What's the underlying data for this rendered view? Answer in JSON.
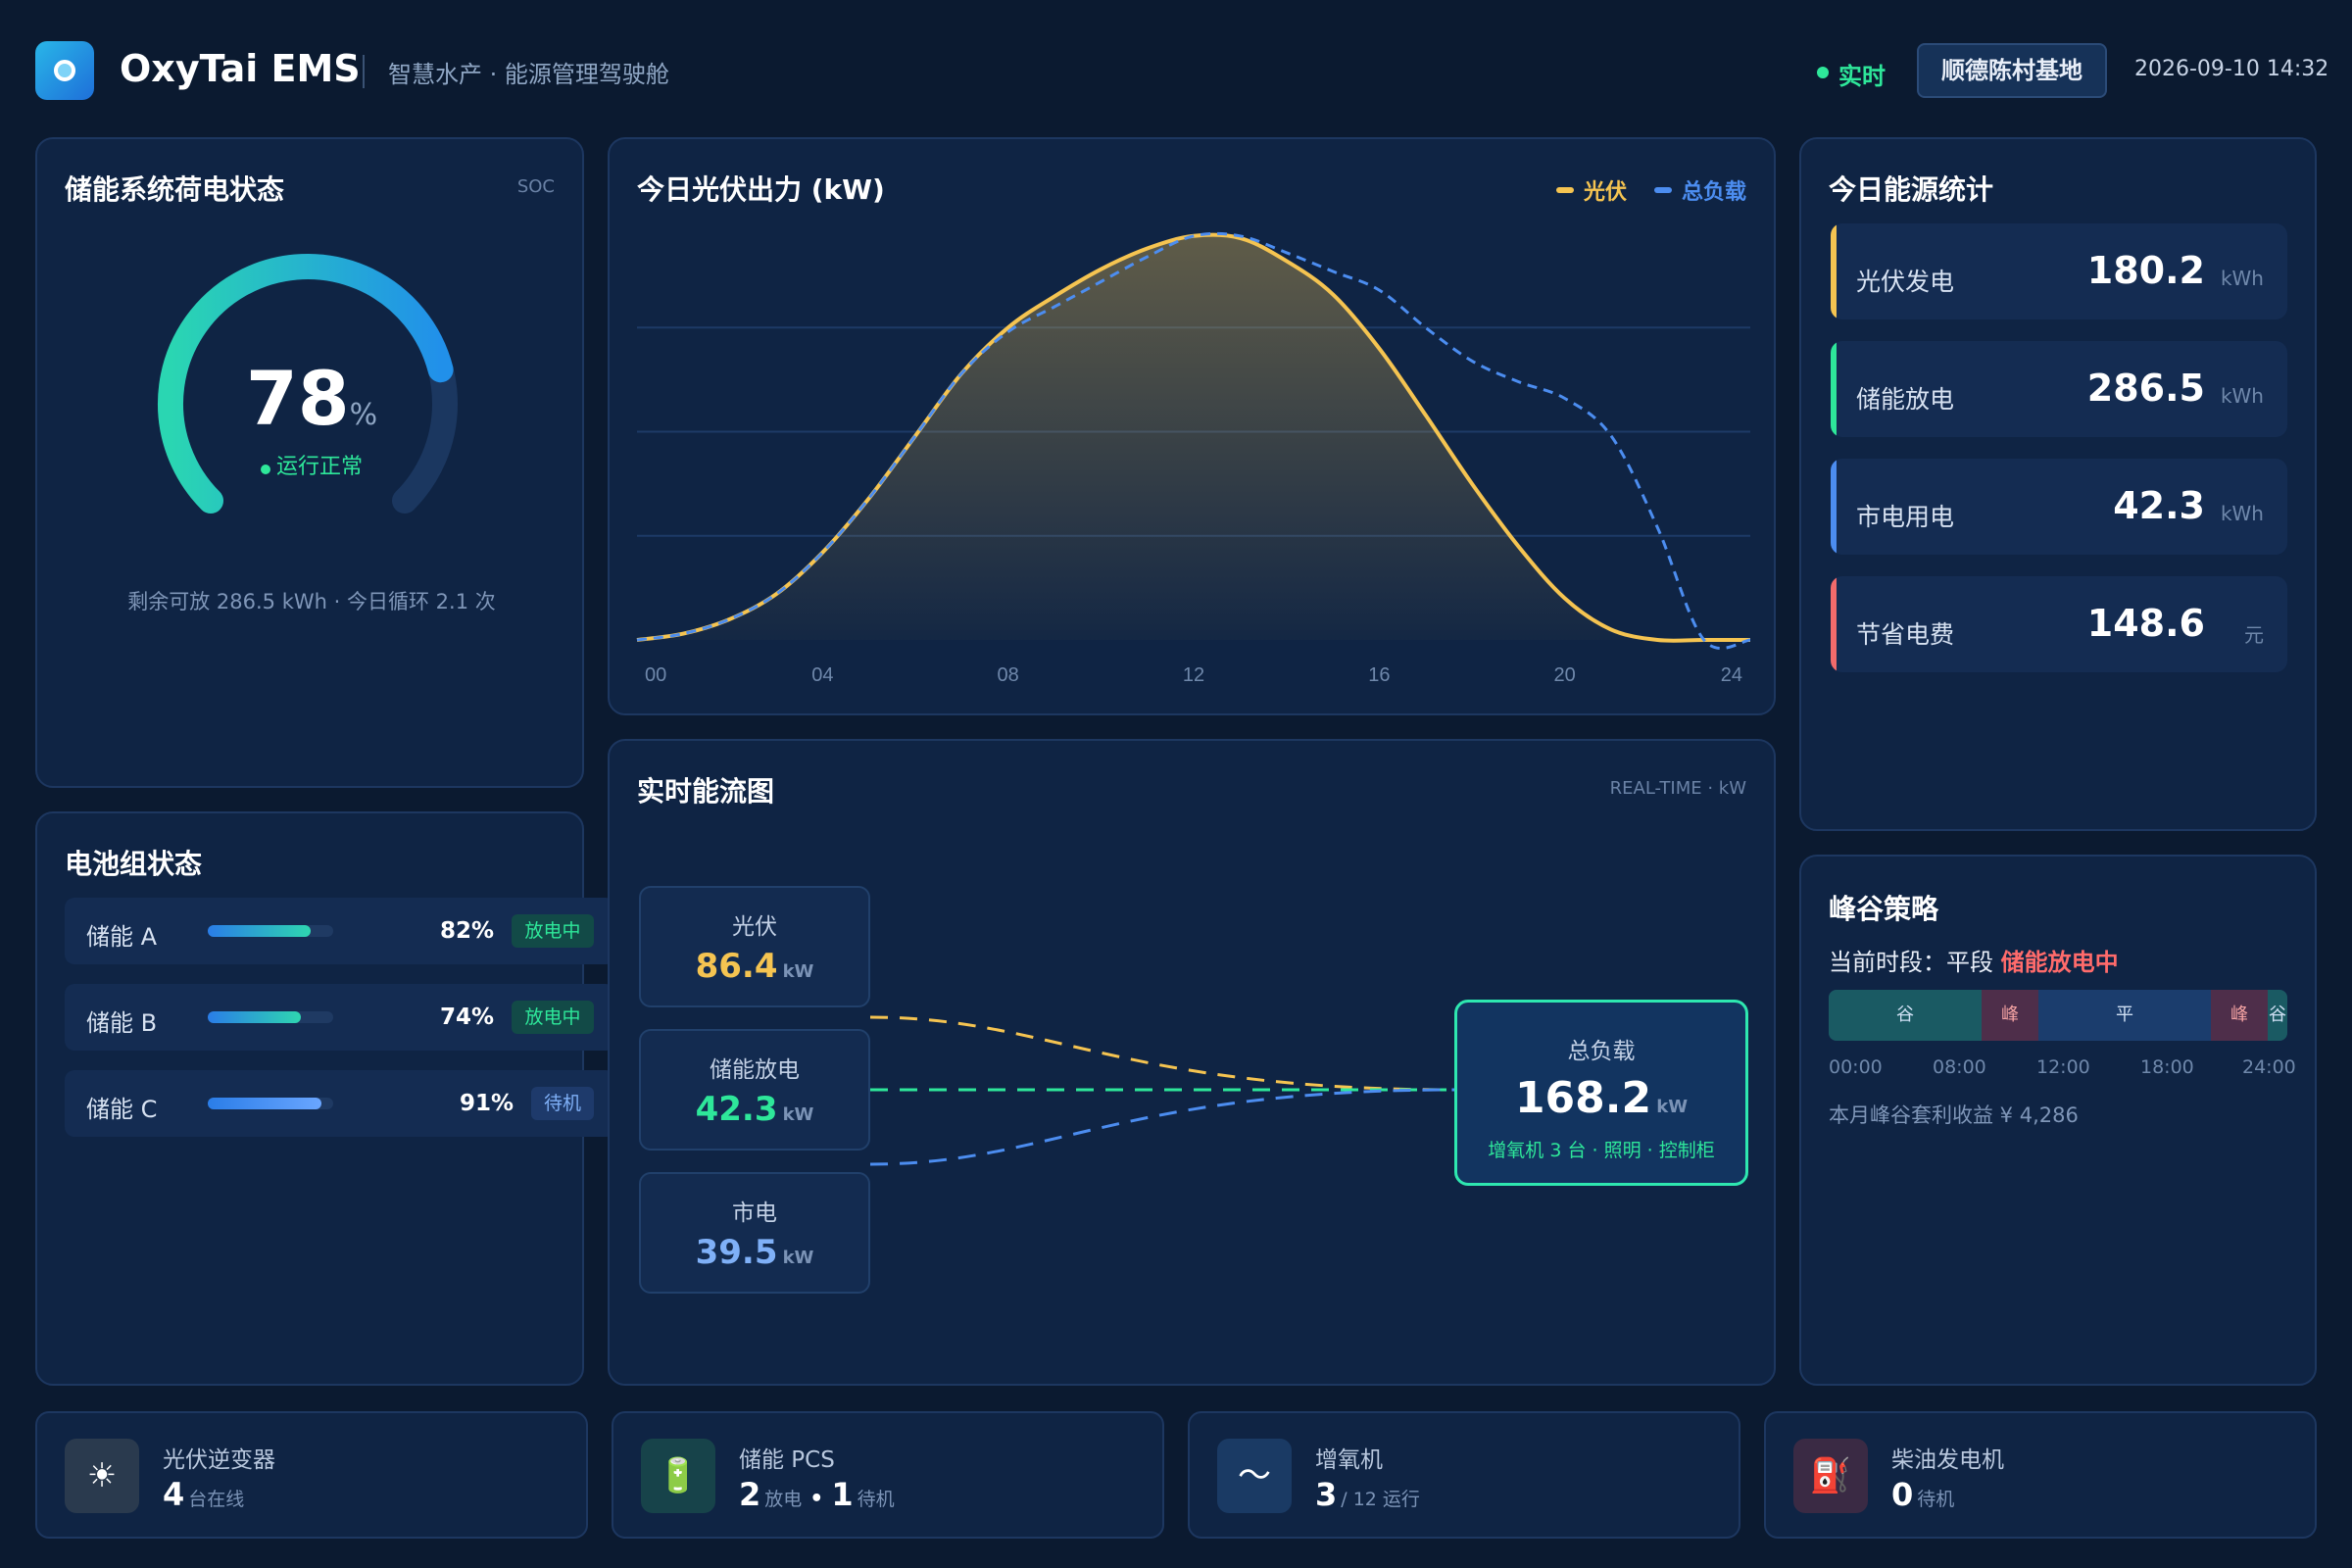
{
  "header": {
    "app_title": "OxyTai EMS",
    "subtitle": "智慧水产 · 能源管理驾驶舱",
    "live_label": "实时",
    "site": "顺德陈村基地",
    "datetime": "2026-09-10 14:32"
  },
  "soc_panel": {
    "title": "储能系统荷电状态",
    "tag": "SOC",
    "value": "78",
    "value_fraction": 0.78,
    "unit": "%",
    "status": "运行正常",
    "footer": "剩余可放 286.5 kWh · 今日循环 2.1 次"
  },
  "battery_panel": {
    "title": "电池组状态",
    "items": [
      {
        "name": "储能 A",
        "level": 0.82,
        "pct": "82%",
        "state": "放电中"
      },
      {
        "name": "储能 B",
        "level": 0.74,
        "pct": "74%",
        "state": "放电中"
      },
      {
        "name": "储能 C",
        "level": 0.91,
        "pct": "91%",
        "state": "待机"
      }
    ]
  },
  "pv_chart": {
    "title": "今日光伏出力 (kW)",
    "legend": [
      {
        "name": "光伏",
        "color": "#f5c451"
      },
      {
        "name": "总负载",
        "color": "#4c8df0"
      }
    ]
  },
  "chart_data": {
    "type": "area",
    "title": "今日光伏出力 (kW)",
    "x": [
      0,
      1,
      2,
      3,
      4,
      5,
      6,
      7,
      8,
      9,
      10,
      11,
      12,
      13,
      14,
      15,
      16,
      17,
      18,
      19,
      20,
      21,
      22,
      23,
      24
    ],
    "xticks": [
      "00",
      "04",
      "08",
      "12",
      "16",
      "20",
      "24"
    ],
    "series": [
      {
        "name": "光伏",
        "color": "#f5c451",
        "style": "solid-area",
        "values": [
          0,
          3,
          10,
          22,
          42,
          68,
          98,
          128,
          150,
          165,
          178,
          188,
          194,
          193,
          182,
          166,
          140,
          108,
          75,
          45,
          20,
          5,
          0,
          0,
          0
        ]
      },
      {
        "name": "总负载",
        "color": "#4c8df0",
        "style": "dashed",
        "values": [
          0,
          3,
          10,
          22,
          42,
          68,
          98,
          128,
          148,
          160,
          172,
          184,
          194,
          194,
          186,
          177,
          168,
          150,
          134,
          124,
          116,
          98,
          54,
          0,
          0
        ]
      }
    ],
    "grid": true,
    "legend_position": "top-right"
  },
  "energy_stats": {
    "title": "今日能源统计",
    "items": [
      {
        "label": "光伏发电",
        "value": "180.2",
        "unit": "kWh",
        "color": "#f5c451"
      },
      {
        "label": "储能放电",
        "value": "286.5",
        "unit": "kWh",
        "color": "#2ee79a"
      },
      {
        "label": "市电用电",
        "value": "42.3",
        "unit": "kWh",
        "color": "#4c8df0"
      },
      {
        "label": "节省电费",
        "value": "148.6",
        "unit": "元",
        "color": "#f26b6b"
      }
    ]
  },
  "flow_panel": {
    "title": "实时能流图",
    "tag": "REAL-TIME · kW",
    "sources": [
      {
        "label": "光伏",
        "value": "86.4",
        "unit": "kW",
        "color": "#f5c451"
      },
      {
        "label": "储能放电",
        "value": "42.3",
        "unit": "kW",
        "color": "#2ee79a"
      },
      {
        "label": "市电",
        "value": "39.5",
        "unit": "kW",
        "color": "#7fb0f7"
      }
    ],
    "load": {
      "label": "总负载",
      "value": "168.2",
      "unit": "kW",
      "detail": "增氧机 3 台 · 照明 · 控制柜"
    }
  },
  "peak_panel": {
    "title": "峰谷策略",
    "current_prefix": "当前时段：平段",
    "current_action": "储能放电中",
    "segments": [
      {
        "label": "谷",
        "type": "valley"
      },
      {
        "label": "峰",
        "type": "peak"
      },
      {
        "label": "平",
        "type": "flat"
      },
      {
        "label": "峰",
        "type": "peak"
      },
      {
        "label": "谷",
        "type": "valley"
      }
    ],
    "times": [
      "00:00",
      "08:00",
      "12:00",
      "18:00",
      "24:00"
    ],
    "footer": "本月峰谷套利收益 ¥ 4,286"
  },
  "devices": [
    {
      "label": "光伏逆变器",
      "icon": "sun-icon",
      "glyph": "☀",
      "n1": "4",
      "t1": "台在线",
      "n2": "",
      "t2": ""
    },
    {
      "label": "储能 PCS",
      "icon": "battery-icon",
      "glyph": "🔋",
      "n1": "2",
      "t1": "放电",
      "sep": "•",
      "n2": "1",
      "t2": "待机"
    },
    {
      "label": "增氧机",
      "icon": "wave-icon",
      "glyph": "〜",
      "n1": "3",
      "t1": "/ 12 运行",
      "n2": "",
      "t2": ""
    },
    {
      "label": "柴油发电机",
      "icon": "fuel-pump-icon",
      "glyph": "⛽",
      "n1": "0",
      "t1": "待机",
      "n2": "",
      "t2": ""
    }
  ]
}
